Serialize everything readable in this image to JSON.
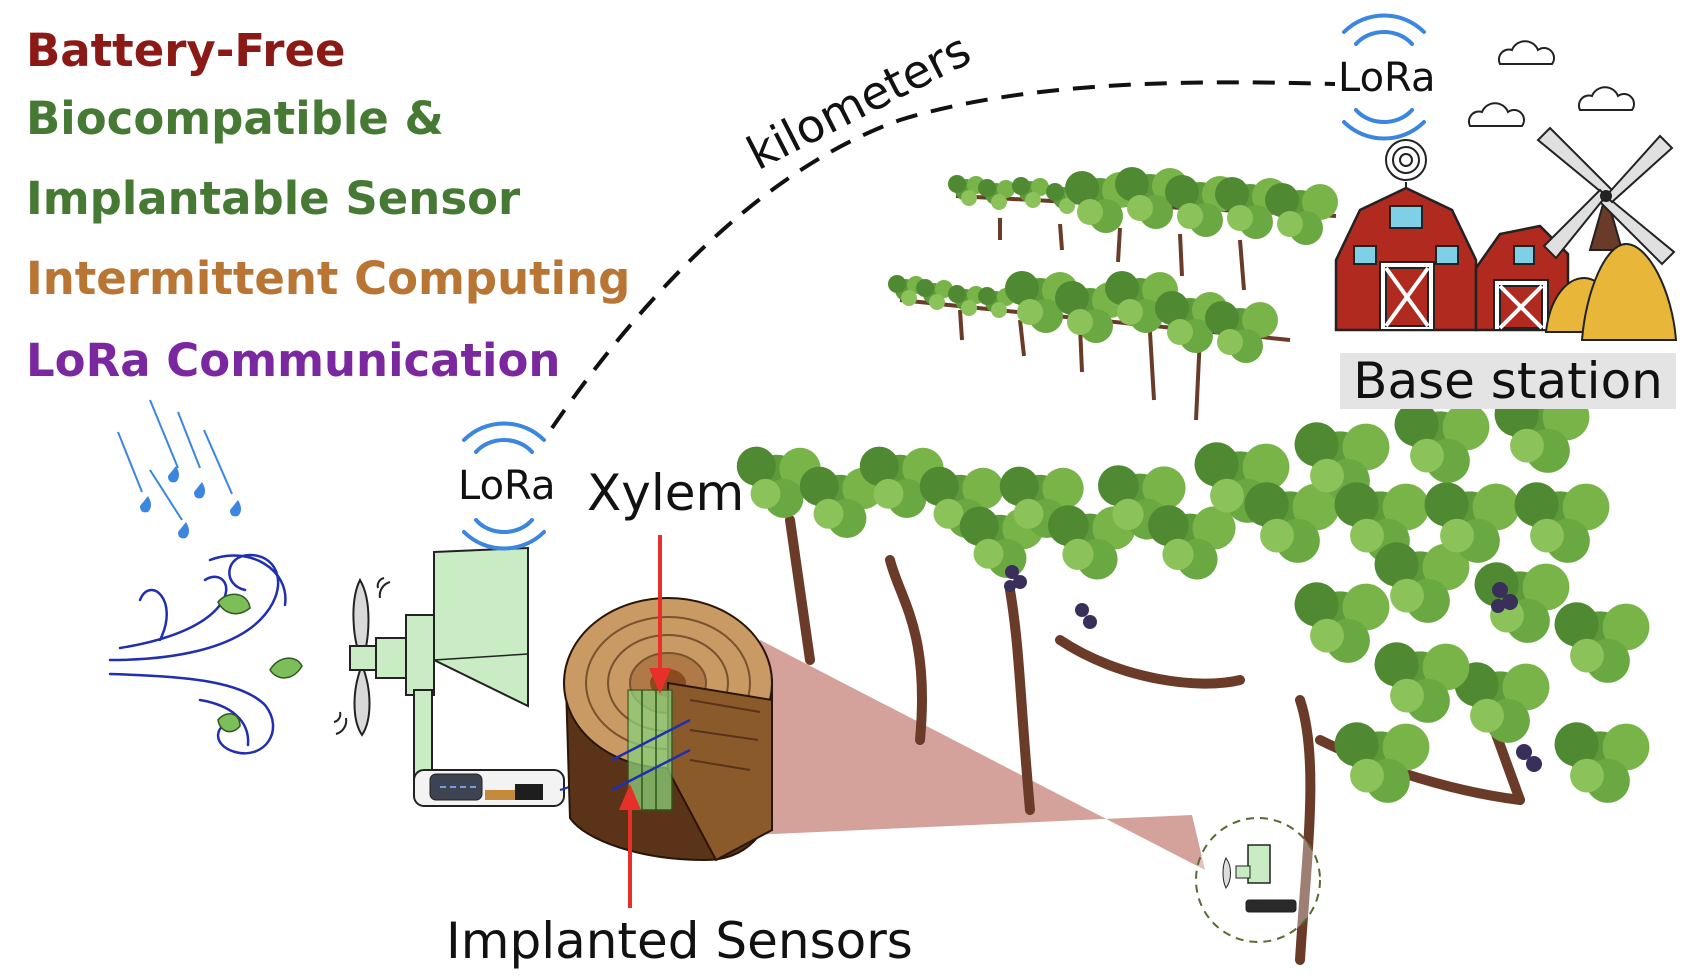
{
  "features": [
    {
      "text": "Battery-Free",
      "color": "#8b1a17"
    },
    {
      "text": "Biocompatible &",
      "color": "#467a34"
    },
    {
      "text": "Implantable Sensor",
      "color": "#467a34"
    },
    {
      "text": "Intermittent Computing",
      "color": "#b97533"
    },
    {
      "text": "LoRa Communication",
      "color": "#7a27a0"
    }
  ],
  "labels": {
    "lora_sensor": "LoRa",
    "lora_base": "LoRa",
    "xylem": "Xylem",
    "implanted_sensors": "Implanted Sensors",
    "base_station": "Base station",
    "link_distance": "kilometers"
  },
  "icons": [
    "rain-icon",
    "wind-icon",
    "wind-turbine-icon",
    "wood-cross-section-icon",
    "antenna-icon",
    "barn-icon",
    "windmill-icon",
    "hay-icon",
    "cloud-icon",
    "grapevine-icon",
    "wifi-signal-icon"
  ],
  "colors": {
    "signal_arc": "#3a86e0",
    "rain": "#3a86e0",
    "wind": "#1f2fb0",
    "leaf": "#7cbf5a",
    "barn": "#b02a1f",
    "hay": "#e8b73a",
    "arrow": "#e8302a",
    "zoom_cone": "#c98a82",
    "vine_leaf": "#5c9a3a",
    "vine_trunk": "#6b3b2a"
  }
}
